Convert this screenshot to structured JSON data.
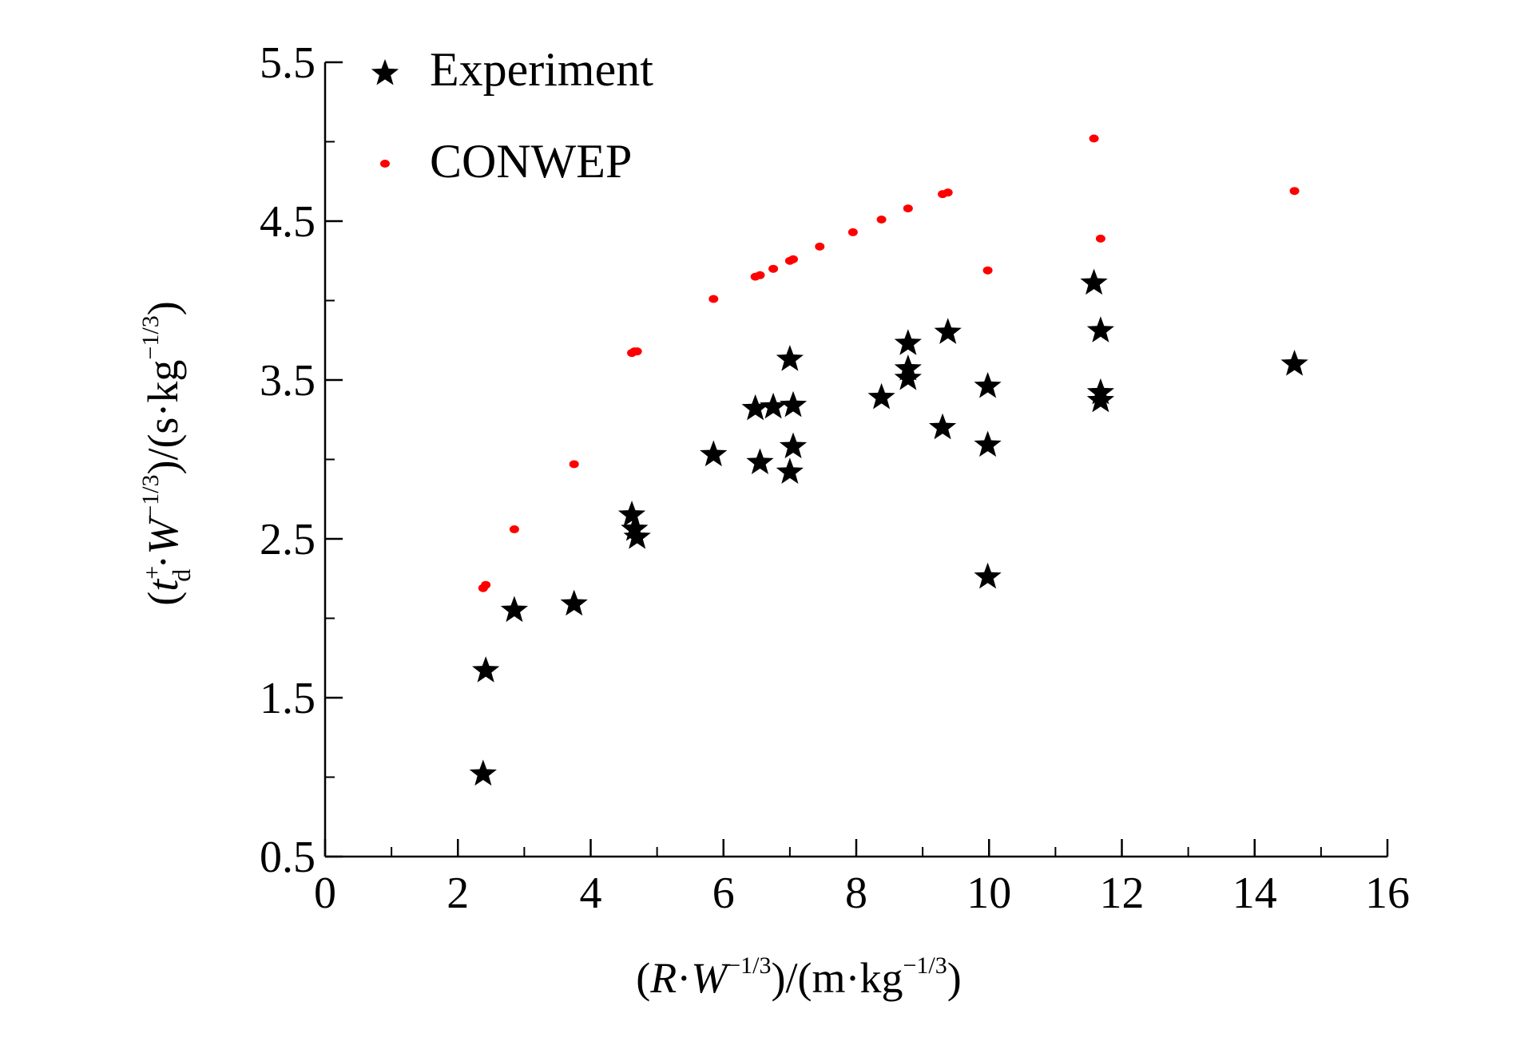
{
  "chart_data": {
    "type": "scatter",
    "xlabel": {
      "open": "(",
      "R": "R",
      "dot": "·",
      "W": "W",
      "exp": "−1/3",
      "unit_open": ")/(m·kg",
      "unit_exp": "−1/3",
      "close": ")"
    },
    "ylabel": {
      "open": "(",
      "t": "t",
      "t_sup": "+",
      "t_sub": "d",
      "dot": "·",
      "W": "W",
      "exp": "−1/3",
      "unit_open": ")/(s·kg",
      "unit_exp": "−1/3",
      "close": ")"
    },
    "xlim": [
      0,
      16
    ],
    "ylim": [
      0.5,
      5.5
    ],
    "x_ticks": [
      "0",
      "2",
      "4",
      "6",
      "8",
      "10",
      "12",
      "14",
      "16"
    ],
    "y_ticks": [
      "0.5",
      "1.5",
      "2.5",
      "3.5",
      "4.5",
      "5.5"
    ],
    "x_major_step": 2,
    "x_minor_step": 1,
    "y_major_step": 1,
    "y_minor_step": 0.5,
    "grid": false,
    "legend_position": "top-left",
    "series": [
      {
        "name": "Experiment",
        "marker": "star",
        "color": "#000000",
        "points": [
          [
            2.38,
            1.02
          ],
          [
            2.42,
            1.67
          ],
          [
            2.85,
            2.05
          ],
          [
            3.75,
            2.09
          ],
          [
            4.62,
            2.65
          ],
          [
            4.66,
            2.56
          ],
          [
            4.7,
            2.51
          ],
          [
            5.85,
            3.03
          ],
          [
            6.48,
            3.32
          ],
          [
            6.55,
            2.98
          ],
          [
            6.75,
            3.33
          ],
          [
            7.0,
            2.92
          ],
          [
            7.0,
            3.63
          ],
          [
            7.05,
            3.34
          ],
          [
            7.05,
            3.08
          ],
          [
            8.38,
            3.39
          ],
          [
            8.78,
            3.73
          ],
          [
            8.78,
            3.57
          ],
          [
            8.78,
            3.51
          ],
          [
            9.3,
            3.2
          ],
          [
            9.38,
            3.8
          ],
          [
            9.98,
            3.46
          ],
          [
            9.98,
            3.09
          ],
          [
            9.98,
            2.26
          ],
          [
            11.58,
            4.11
          ],
          [
            11.68,
            3.81
          ],
          [
            11.68,
            3.42
          ],
          [
            11.68,
            3.37
          ],
          [
            14.6,
            3.6
          ]
        ]
      },
      {
        "name": "CONWEP",
        "marker": "dot",
        "color": "#ff0000",
        "points": [
          [
            2.38,
            2.19
          ],
          [
            2.42,
            2.21
          ],
          [
            2.85,
            2.56
          ],
          [
            3.75,
            2.97
          ],
          [
            4.62,
            3.67
          ],
          [
            4.66,
            3.68
          ],
          [
            4.7,
            3.68
          ],
          [
            5.85,
            4.01
          ],
          [
            6.48,
            4.15
          ],
          [
            6.55,
            4.16
          ],
          [
            6.75,
            4.2
          ],
          [
            7.0,
            4.25
          ],
          [
            7.05,
            4.26
          ],
          [
            7.45,
            4.34
          ],
          [
            7.95,
            4.43
          ],
          [
            8.38,
            4.51
          ],
          [
            8.78,
            4.58
          ],
          [
            9.3,
            4.67
          ],
          [
            9.38,
            4.68
          ],
          [
            9.98,
            4.19
          ],
          [
            11.58,
            5.02
          ],
          [
            11.68,
            4.39
          ],
          [
            14.6,
            4.69
          ]
        ]
      }
    ]
  }
}
